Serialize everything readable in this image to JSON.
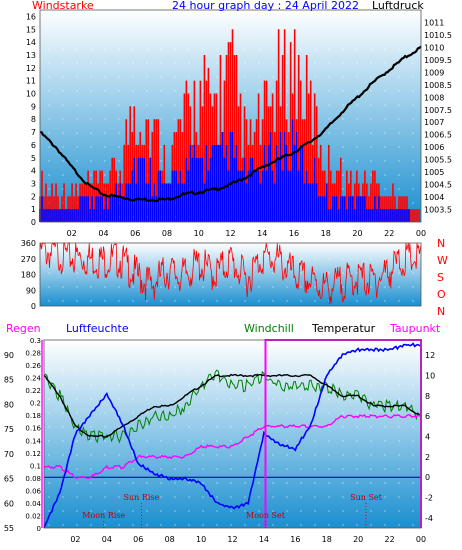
{
  "chart_data": [
    {
      "type": "bar",
      "title": "24 hour graph day : 24 April 2022",
      "left_label": "Windstarke",
      "right_label": "Luftdruck",
      "x_ticks": [
        "02",
        "04",
        "06",
        "08",
        "10",
        "12",
        "14",
        "16",
        "18",
        "20",
        "22",
        "00"
      ],
      "left_ticks": [
        "0",
        "1",
        "2",
        "3",
        "4",
        "5",
        "6",
        "7",
        "8",
        "9",
        "10",
        "11",
        "12",
        "13",
        "14",
        "15",
        "16"
      ],
      "right_ticks": [
        "1003.5",
        "1004",
        "1004.5",
        "1005",
        "1005.5",
        "1006",
        "1006.5",
        "1007",
        "1007.5",
        "1008",
        "1008.5",
        "1009",
        "1009.5",
        "1010",
        "1010.5",
        "1011"
      ],
      "left_range": [
        0,
        16.5
      ],
      "right_range": [
        1003,
        1011.5
      ],
      "hours": [
        0,
        1,
        2,
        3,
        4,
        5,
        6,
        7,
        8,
        9,
        10,
        11,
        12,
        13,
        14,
        15,
        16,
        17,
        18,
        19,
        20,
        21,
        22,
        23,
        24
      ],
      "gust_peak": [
        4,
        3,
        3,
        4,
        4,
        6,
        12,
        10,
        6,
        10,
        13,
        12,
        16,
        8,
        10,
        14,
        16,
        12,
        6,
        5,
        4,
        4,
        3,
        2,
        1
      ],
      "wind_mean": [
        2,
        1,
        1,
        2,
        2,
        3,
        6,
        5,
        3,
        5,
        6,
        6,
        7,
        4,
        5,
        7,
        7,
        5,
        3,
        2,
        2,
        2,
        1,
        1,
        0
      ],
      "pressure": [
        1006.6,
        1006.0,
        1005.2,
        1004.5,
        1004.1,
        1004.0,
        1003.9,
        1003.9,
        1003.9,
        1004.1,
        1004.2,
        1004.3,
        1004.5,
        1004.8,
        1005.2,
        1005.5,
        1005.8,
        1006.2,
        1006.7,
        1007.4,
        1008.0,
        1008.6,
        1009.1,
        1009.6,
        1010.0
      ],
      "colors": {
        "gust": "#ff0000",
        "mean": "#0000ff",
        "pressure": "#000000",
        "left_label": "#ff0000",
        "title": "#0000ff",
        "right_label": "#000000"
      }
    },
    {
      "type": "line",
      "ylabel_right": [
        "N",
        "W",
        "S",
        "O",
        "N"
      ],
      "y_ticks": [
        "0",
        "90",
        "180",
        "270",
        "360"
      ],
      "y_range": [
        0,
        360
      ],
      "hours": [
        0,
        1,
        2,
        3,
        4,
        5,
        6,
        7,
        8,
        9,
        10,
        11,
        12,
        13,
        14,
        15,
        16,
        17,
        18,
        19,
        20,
        21,
        22,
        23,
        24
      ],
      "direction": [
        320,
        300,
        280,
        270,
        260,
        270,
        180,
        120,
        200,
        170,
        240,
        180,
        260,
        150,
        280,
        260,
        180,
        140,
        100,
        130,
        160,
        140,
        200,
        270,
        270
      ],
      "colors": {
        "line": "#ff0000",
        "letters": "#ff0000"
      }
    },
    {
      "type": "line",
      "legend": [
        "Regen",
        "Luftfeuchte",
        "Windchill",
        "Temperatur",
        "Taupunkt"
      ],
      "legend_colors": [
        "#ff00ff",
        "#0000ff",
        "#008000",
        "#000000",
        "#ff00ff"
      ],
      "left_ticks": [
        "55",
        "60",
        "65",
        "70",
        "75",
        "80",
        "85",
        "90"
      ],
      "left_range": [
        55,
        93
      ],
      "rain_ticks": [
        "0",
        "0.02",
        "0.04",
        "0.06",
        "0.08",
        "0.1",
        "0.12",
        "0.14",
        "0.16",
        "0.18",
        "0.2",
        "0.22",
        "0.24",
        "0.26",
        "0.28",
        "0.3"
      ],
      "right_ticks": [
        "-4",
        "-2",
        "0",
        "2",
        "4",
        "6",
        "8",
        "10",
        "12"
      ],
      "right_range": [
        -5,
        13.5
      ],
      "hours": [
        0,
        1,
        2,
        3,
        4,
        5,
        6,
        7,
        8,
        9,
        10,
        11,
        12,
        13,
        14,
        15,
        16,
        17,
        18,
        19,
        20,
        21,
        22,
        23,
        24
      ],
      "humidity": [
        55,
        62,
        74,
        78,
        82,
        76,
        68,
        66,
        65,
        65,
        64,
        60,
        59,
        60,
        74,
        72,
        71,
        76,
        86,
        90,
        91,
        91,
        91,
        92,
        92
      ],
      "temperature": [
        10,
        8,
        5,
        4,
        4,
        5,
        6,
        7,
        7,
        8,
        9,
        10,
        10,
        10,
        10,
        10,
        10,
        10,
        9,
        8,
        8,
        7,
        7,
        7,
        6
      ],
      "windchill": [
        10,
        8,
        5,
        4,
        4,
        4,
        5,
        6,
        6,
        7,
        9,
        10,
        9,
        9,
        10,
        9,
        9,
        9,
        9,
        8,
        8,
        7,
        7,
        7,
        6
      ],
      "dewpoint": [
        1,
        1,
        0,
        0,
        1,
        1,
        2,
        2,
        2,
        2,
        3,
        3,
        3,
        4,
        5,
        5,
        5,
        5,
        5,
        6,
        6,
        6,
        6,
        6,
        6
      ],
      "annotations": [
        {
          "text": "Sun Rise",
          "hour": 6.2
        },
        {
          "text": "Moon Rise",
          "hour": 3.8
        },
        {
          "text": "Moon Set",
          "hour": 14.1
        },
        {
          "text": "Sun Set",
          "hour": 20.5
        }
      ],
      "x_ticks": [
        "02",
        "04",
        "06",
        "08",
        "10",
        "12",
        "14",
        "16",
        "18",
        "20",
        "22",
        "00"
      ],
      "colors": {
        "humidity": "#0000ff",
        "temperature": "#000000",
        "windchill": "#008000",
        "dewpoint": "#ff00ff",
        "zero": "#000080",
        "frame": "#ff00ff",
        "ann": "#c00000"
      }
    }
  ]
}
